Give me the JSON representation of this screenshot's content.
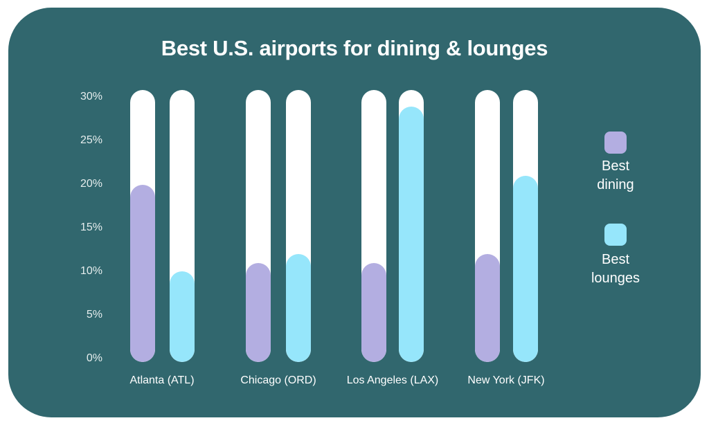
{
  "chart_data": {
    "type": "bar",
    "title": "Best U.S. airports for dining & lounges",
    "xlabel": "",
    "ylabel": "",
    "ylim": [
      0,
      30
    ],
    "yticks": [
      "0%",
      "5%",
      "10%",
      "15%",
      "20%",
      "25%",
      "30%"
    ],
    "categories": [
      "Atlanta (ATL)",
      "Chicago (ORD)",
      "Los Angeles (LAX)",
      "New York (JFK)"
    ],
    "series": [
      {
        "name": "Best dining",
        "color": "#b3aee1",
        "values": [
          20,
          11,
          11,
          12
        ]
      },
      {
        "name": "Best lounges",
        "color": "#96e6fb",
        "values": [
          10,
          12,
          29,
          21
        ]
      }
    ],
    "grid": false,
    "legend_position": "right"
  },
  "colors": {
    "background": "#31676e",
    "track": "#ffffff",
    "dining": "#b3aee1",
    "lounges": "#96e6fb"
  },
  "legend": {
    "dining_label_1": "Best",
    "dining_label_2": "dining",
    "lounges_label_1": "Best",
    "lounges_label_2": "lounges"
  }
}
